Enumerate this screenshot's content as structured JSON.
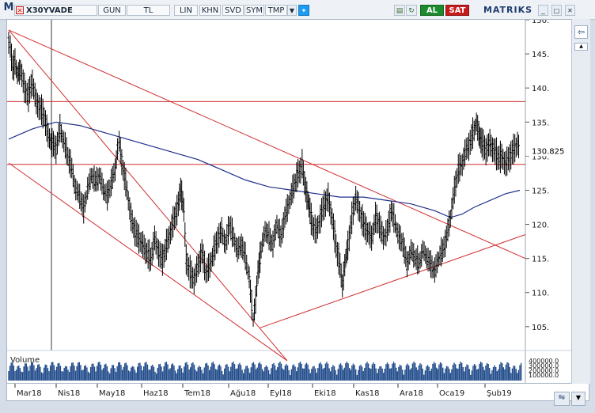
{
  "toolbar": {
    "m_label": "M",
    "symbol": "X30YVADE",
    "period": "GUN",
    "currency": "TL",
    "scale": "LIN",
    "khn": "KHN",
    "svd": "SVD",
    "sym": "SYM",
    "tmp": "TMP",
    "buy": "AL",
    "sell": "SAT",
    "brand": "MATRIKS"
  },
  "colors": {
    "price": "#000000",
    "moving_average": "#1f2f8c",
    "trendline": "#d22f2f",
    "volume": "#1f4a8a",
    "buy": "#1c8a2e",
    "sell": "#c61c1c"
  },
  "chart_data": {
    "type": "candlestick",
    "symbol": "X30YVADE",
    "x_tick_labels": [
      "Mar18",
      "Nis18",
      "May18",
      "Haz18",
      "Tem18",
      "Ağu18",
      "Eyl18",
      "Eki18",
      "Kas18",
      "Ara18",
      "Oca19",
      "Şub19"
    ],
    "y_tick_values": [
      105,
      110,
      115,
      120,
      125,
      130,
      135,
      140,
      145,
      150
    ],
    "ylim": [
      101.5,
      150
    ],
    "last_value_label": "130.825",
    "price_series": [
      [
        0,
        147
      ],
      [
        2,
        146
      ],
      [
        5,
        143
      ],
      [
        8,
        144
      ],
      [
        11,
        142
      ],
      [
        15,
        143
      ],
      [
        20,
        140
      ],
      [
        25,
        139
      ],
      [
        30,
        141
      ],
      [
        35,
        138
      ],
      [
        40,
        137
      ],
      [
        45,
        136
      ],
      [
        50,
        133
      ],
      [
        55,
        132
      ],
      [
        60,
        131
      ],
      [
        65,
        134
      ],
      [
        70,
        132
      ],
      [
        75,
        130
      ],
      [
        80,
        128
      ],
      [
        85,
        125
      ],
      [
        90,
        124
      ],
      [
        95,
        122
      ],
      [
        100,
        125
      ],
      [
        105,
        127
      ],
      [
        110,
        126
      ],
      [
        115,
        127
      ],
      [
        120,
        125
      ],
      [
        125,
        124
      ],
      [
        130,
        126
      ],
      [
        135,
        128
      ],
      [
        138,
        131
      ],
      [
        140,
        132
      ],
      [
        145,
        128
      ],
      [
        150,
        125
      ],
      [
        155,
        121
      ],
      [
        160,
        119
      ],
      [
        165,
        118
      ],
      [
        170,
        117
      ],
      [
        175,
        116
      ],
      [
        180,
        115
      ],
      [
        185,
        118
      ],
      [
        190,
        116
      ],
      [
        195,
        115
      ],
      [
        200,
        117
      ],
      [
        205,
        119
      ],
      [
        210,
        121
      ],
      [
        215,
        123
      ],
      [
        218,
        125
      ],
      [
        222,
        122
      ],
      [
        225,
        115
      ],
      [
        230,
        113
      ],
      [
        235,
        112
      ],
      [
        240,
        114
      ],
      [
        245,
        116
      ],
      [
        250,
        113
      ],
      [
        255,
        114
      ],
      [
        260,
        116
      ],
      [
        265,
        118
      ],
      [
        270,
        119
      ],
      [
        275,
        117
      ],
      [
        280,
        120
      ],
      [
        285,
        118
      ],
      [
        290,
        116
      ],
      [
        295,
        117
      ],
      [
        300,
        115
      ],
      [
        305,
        112
      ],
      [
        308,
        108
      ],
      [
        310,
        106
      ],
      [
        313,
        109
      ],
      [
        316,
        113
      ],
      [
        320,
        116
      ],
      [
        325,
        119
      ],
      [
        330,
        118
      ],
      [
        335,
        117
      ],
      [
        340,
        120
      ],
      [
        345,
        118
      ],
      [
        350,
        121
      ],
      [
        355,
        123
      ],
      [
        360,
        125
      ],
      [
        365,
        127
      ],
      [
        370,
        128
      ],
      [
        372,
        129
      ],
      [
        375,
        126
      ],
      [
        378,
        124
      ],
      [
        382,
        122
      ],
      [
        385,
        120
      ],
      [
        390,
        119
      ],
      [
        395,
        121
      ],
      [
        400,
        123
      ],
      [
        405,
        124
      ],
      [
        410,
        121
      ],
      [
        415,
        117
      ],
      [
        420,
        114
      ],
      [
        423,
        111
      ],
      [
        426,
        114
      ],
      [
        430,
        117
      ],
      [
        435,
        121
      ],
      [
        440,
        124
      ],
      [
        445,
        122
      ],
      [
        450,
        120
      ],
      [
        455,
        119
      ],
      [
        460,
        118
      ],
      [
        465,
        121
      ],
      [
        470,
        120
      ],
      [
        475,
        118
      ],
      [
        480,
        119
      ],
      [
        485,
        122
      ],
      [
        490,
        120
      ],
      [
        495,
        118
      ],
      [
        500,
        117
      ],
      [
        505,
        114
      ],
      [
        510,
        116
      ],
      [
        515,
        115
      ],
      [
        520,
        114
      ],
      [
        525,
        116
      ],
      [
        530,
        115
      ],
      [
        535,
        114
      ],
      [
        540,
        113
      ],
      [
        545,
        115
      ],
      [
        550,
        116
      ],
      [
        555,
        118
      ],
      [
        560,
        121
      ],
      [
        565,
        125
      ],
      [
        570,
        128
      ],
      [
        575,
        129
      ],
      [
        580,
        131
      ],
      [
        585,
        132
      ],
      [
        590,
        134
      ],
      [
        593,
        135
      ],
      [
        596,
        133
      ],
      [
        600,
        132
      ],
      [
        605,
        131
      ],
      [
        610,
        132
      ],
      [
        615,
        131
      ],
      [
        620,
        130
      ],
      [
        625,
        130
      ],
      [
        630,
        129
      ],
      [
        635,
        130
      ],
      [
        640,
        131
      ],
      [
        645,
        132
      ],
      [
        648,
        131
      ]
    ],
    "moving_average_series": [
      [
        0,
        132.5
      ],
      [
        30,
        134
      ],
      [
        60,
        135
      ],
      [
        90,
        134.5
      ],
      [
        120,
        133.5
      ],
      [
        150,
        132.5
      ],
      [
        180,
        131.5
      ],
      [
        210,
        130.5
      ],
      [
        240,
        129.5
      ],
      [
        270,
        128
      ],
      [
        300,
        126.5
      ],
      [
        330,
        125.5
      ],
      [
        360,
        125
      ],
      [
        390,
        124.5
      ],
      [
        420,
        124
      ],
      [
        450,
        124
      ],
      [
        480,
        123.5
      ],
      [
        510,
        123
      ],
      [
        540,
        122
      ],
      [
        560,
        121
      ],
      [
        575,
        121.5
      ],
      [
        590,
        122.5
      ],
      [
        610,
        123.5
      ],
      [
        630,
        124.5
      ],
      [
        648,
        125
      ]
    ],
    "trendlines": [
      {
        "from": [
          0,
          148.5
        ],
        "to": [
          353,
          100
        ]
      },
      {
        "from": [
          0,
          129
        ],
        "to": [
          353,
          100
        ]
      },
      {
        "from": [
          0,
          148.5
        ],
        "to": [
          655,
          115
        ]
      },
      {
        "from": [
          318,
          104.8
        ],
        "to": [
          655,
          118.5
        ]
      }
    ],
    "horizontal_lines": [
      138,
      128.8
    ],
    "volume_label": "Volume",
    "volume_tick_labels": [
      "400000.0",
      "300000.0",
      "200000.0",
      "100000.0"
    ]
  }
}
